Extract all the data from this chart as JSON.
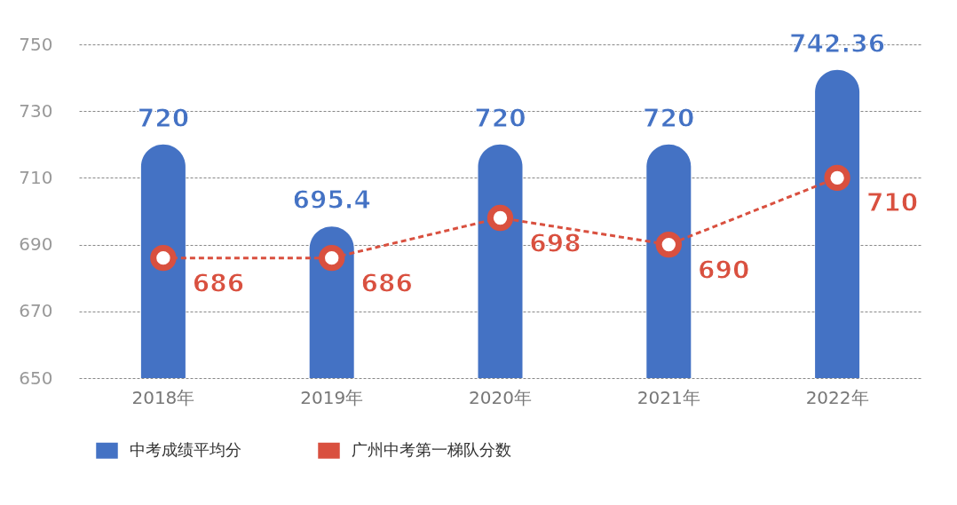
{
  "chart_data": {
    "type": "bar",
    "categories": [
      "2018年",
      "2019年",
      "2020年",
      "2021年",
      "2022年"
    ],
    "series": [
      {
        "name": "中考成绩平均分",
        "color": "#4472c4",
        "values": [
          720,
          695.4,
          720,
          720,
          742.36
        ]
      },
      {
        "name": "广州中考第一梯队分数",
        "type": "line",
        "color": "#d9503f",
        "values": [
          686,
          686,
          698,
          690,
          710
        ],
        "marker": "circle",
        "line_style": "dashed"
      }
    ],
    "ylim": [
      650,
      750
    ],
    "yticks": [
      650,
      670,
      690,
      710,
      730,
      750
    ],
    "grid": "y",
    "legend": "bottom",
    "data_labels": true
  }
}
